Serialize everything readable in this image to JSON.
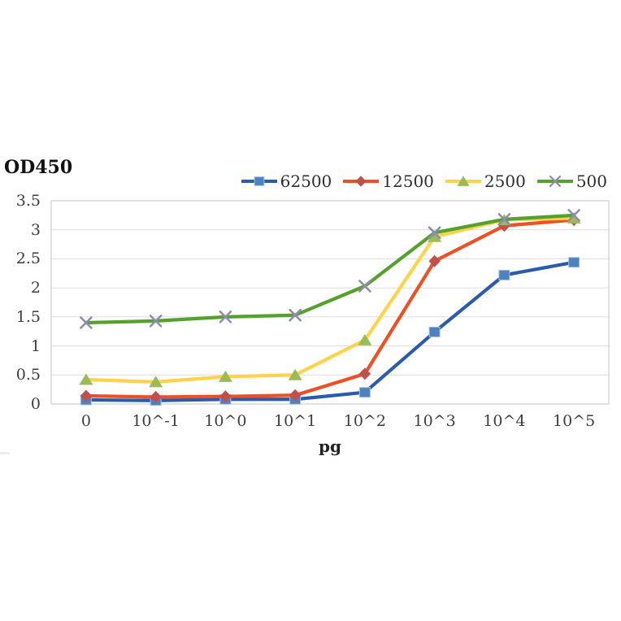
{
  "chart_data": {
    "type": "line",
    "title": "OD450",
    "xlabel": "pg",
    "ylabel": "OD450",
    "categories": [
      "0",
      "10^-1",
      "10^0",
      "10^1",
      "10^2",
      "10^3",
      "10^4",
      "10^5"
    ],
    "y_ticks": [
      "3.5",
      "3",
      "2.5",
      "2",
      "1.5",
      "1",
      "0.5",
      "0"
    ],
    "ylim": [
      0,
      3.5
    ],
    "grid": true,
    "grid_color": "#dcdcdc",
    "border_color": "#c5c5c5",
    "legend_position": "top-right",
    "series": [
      {
        "name": "62500",
        "marker": "square",
        "line_color": "#2a5caa",
        "marker_color": "#4f81bd",
        "values": [
          0.07,
          0.06,
          0.08,
          0.08,
          0.2,
          1.24,
          2.22,
          2.44
        ]
      },
      {
        "name": "12500",
        "marker": "diamond",
        "line_color": "#f04e23",
        "marker_color": "#c0504d",
        "values": [
          0.14,
          0.12,
          0.13,
          0.15,
          0.52,
          2.46,
          3.07,
          3.17
        ]
      },
      {
        "name": "2500",
        "marker": "triangle",
        "line_color": "#ffd24a",
        "marker_color": "#9bbb59",
        "values": [
          0.42,
          0.38,
          0.47,
          0.5,
          1.1,
          2.88,
          3.17,
          3.2
        ]
      },
      {
        "name": "500",
        "marker": "x",
        "line_color": "#55a12e",
        "marker_color": "#8f8cae",
        "values": [
          1.4,
          1.43,
          1.5,
          1.53,
          2.03,
          2.95,
          3.18,
          3.25
        ]
      }
    ]
  }
}
